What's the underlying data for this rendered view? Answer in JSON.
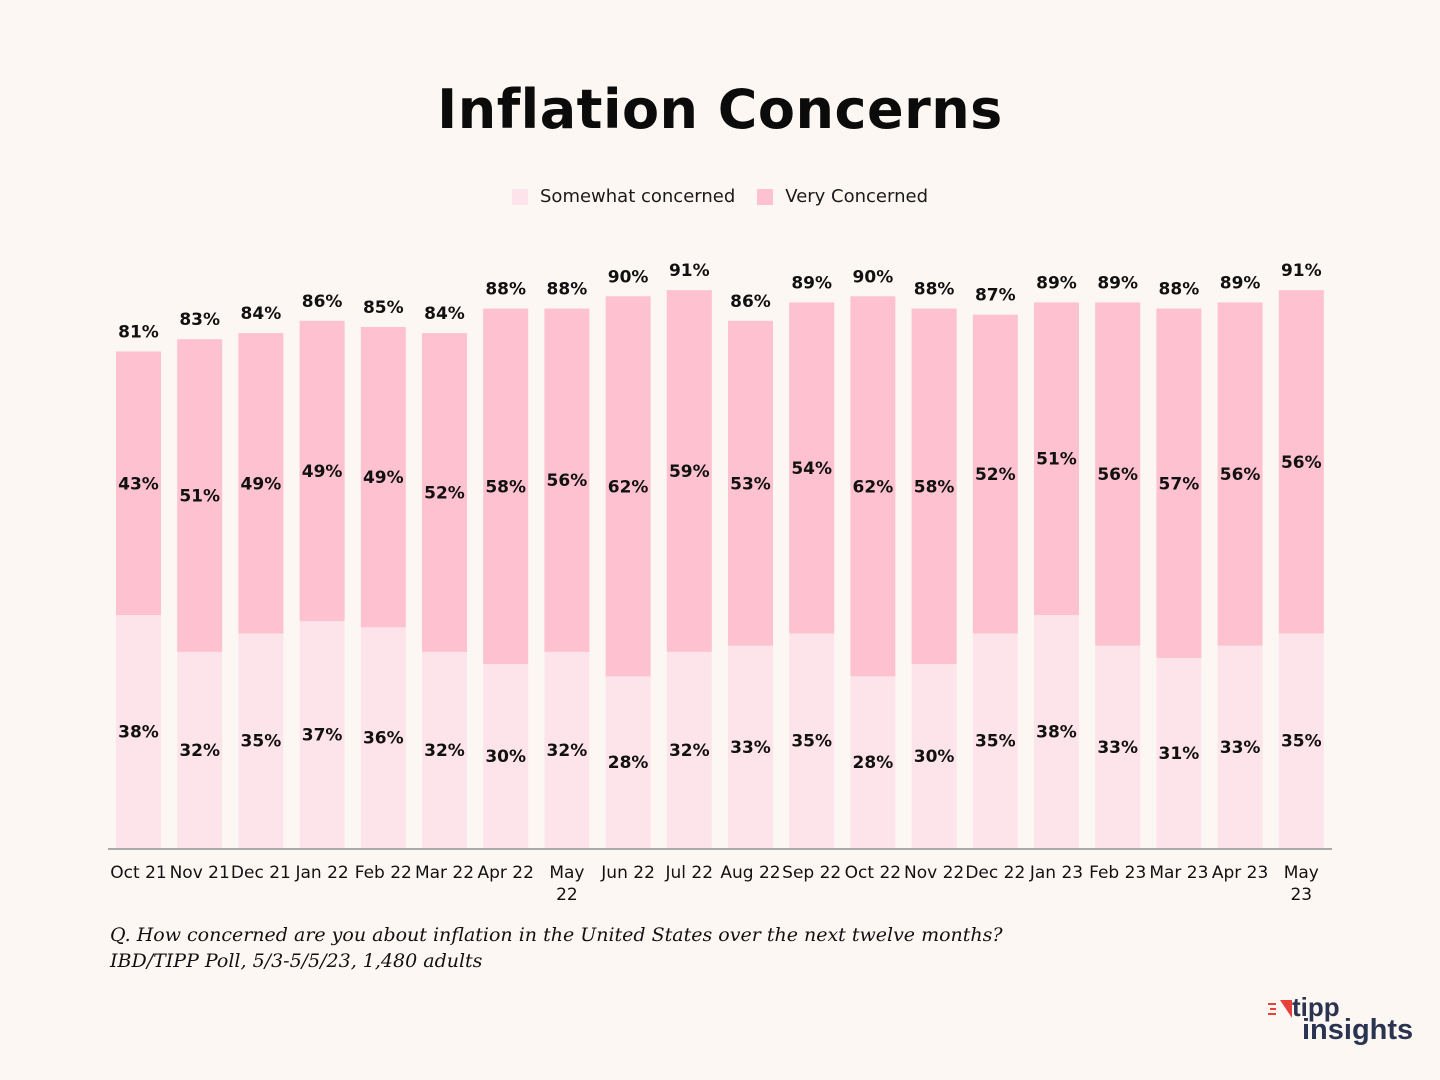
{
  "chart_data": {
    "type": "bar",
    "stacked": true,
    "title": "Inflation Concerns",
    "categories": [
      "Oct 21",
      "Nov 21",
      "Dec 21",
      "Jan 22",
      "Feb 22",
      "Mar 22",
      "Apr 22",
      "May 22",
      "Jun 22",
      "Jul 22",
      "Aug 22",
      "Sep 22",
      "Oct 22",
      "Nov 22",
      "Dec 22",
      "Jan 23",
      "Feb 23",
      "Mar 23",
      "Apr 23",
      "May 23"
    ],
    "series": [
      {
        "name": "Somewhat concerned",
        "color": "#fde4ea",
        "values": [
          38,
          32,
          35,
          37,
          36,
          32,
          30,
          32,
          28,
          32,
          33,
          35,
          28,
          30,
          35,
          38,
          33,
          31,
          33,
          35
        ]
      },
      {
        "name": "Very Concerned",
        "color": "#fdc1d0",
        "values": [
          43,
          51,
          49,
          49,
          49,
          52,
          58,
          56,
          62,
          59,
          53,
          54,
          62,
          58,
          52,
          51,
          56,
          57,
          56,
          56
        ]
      }
    ],
    "totals": [
      81,
      83,
      84,
      86,
      85,
      84,
      88,
      88,
      90,
      91,
      86,
      89,
      90,
      88,
      87,
      89,
      89,
      88,
      89,
      91
    ],
    "ylim": [
      0,
      100
    ],
    "xlabel": "",
    "ylabel": "",
    "grid": false,
    "legend_position": "top-center"
  },
  "footnote": {
    "line1": "Q. How concerned are you about inflation in the United States over the next twelve months?",
    "line2": "IBD/TIPP Poll, 5/3-5/5/23, 1,480 adults"
  },
  "logo": {
    "line1": "tipp",
    "line2": "insights",
    "accent_color": "#e8413a",
    "text_color": "#2a3350"
  },
  "colors": {
    "background": "#fdf7f3",
    "axis": "#aaaaaa"
  }
}
